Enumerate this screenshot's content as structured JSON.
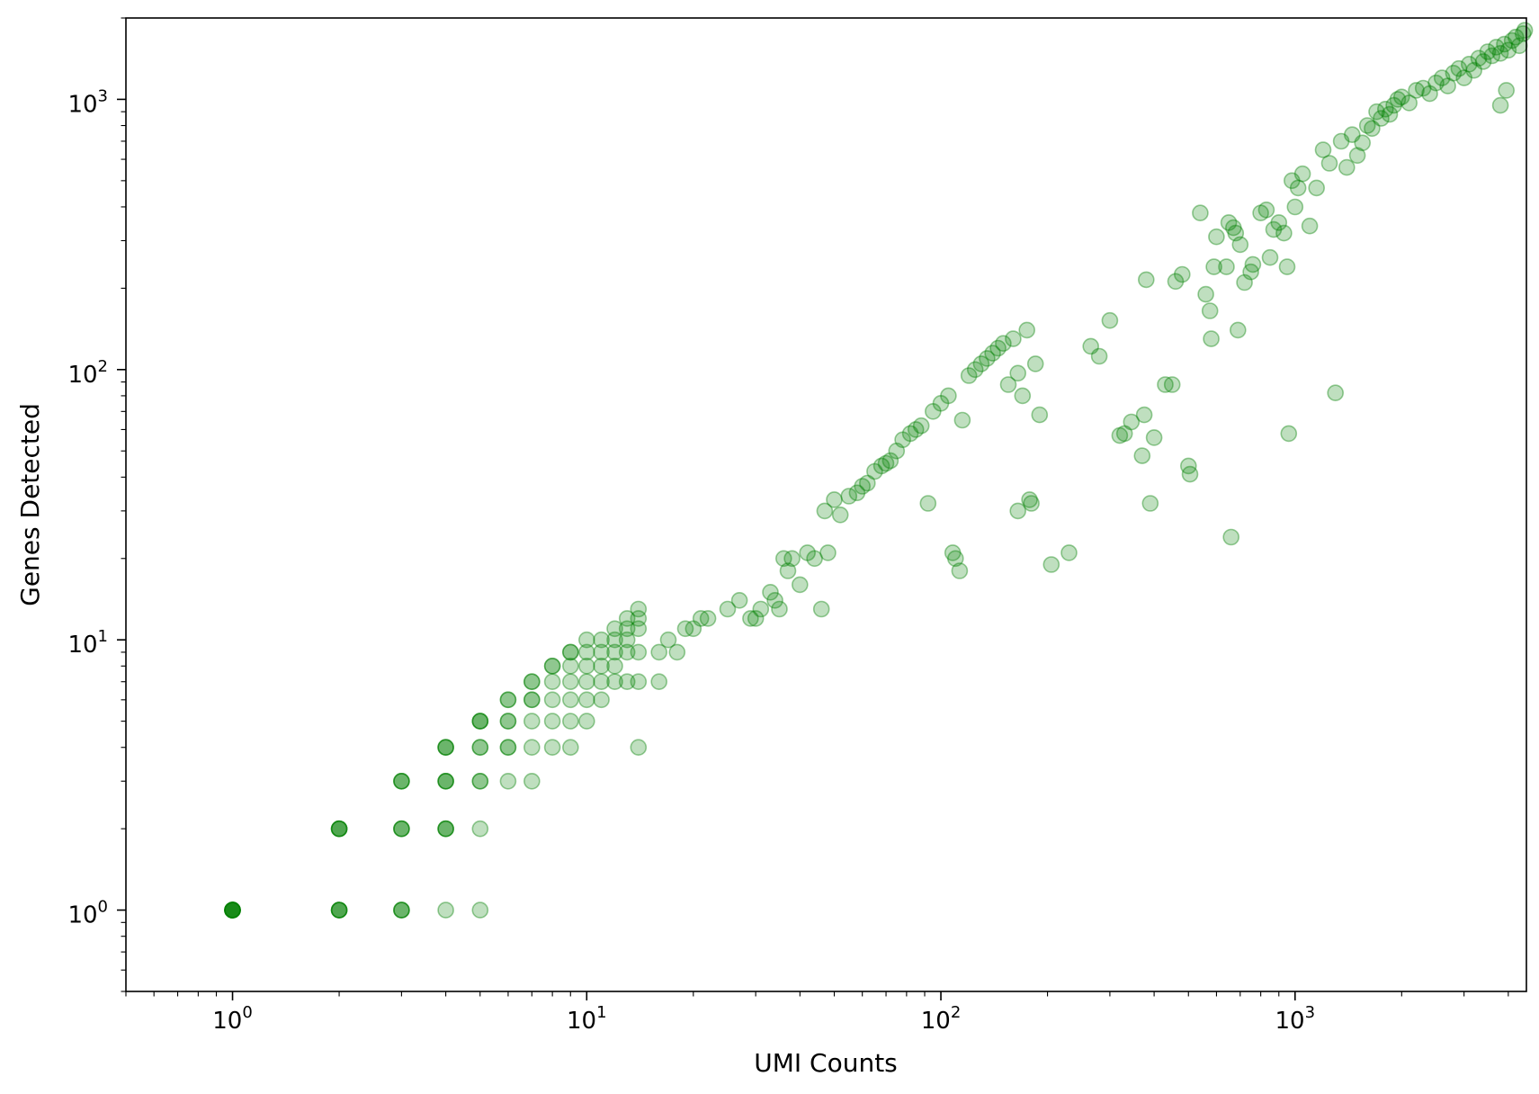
{
  "chart_data": {
    "type": "scatter",
    "title": "",
    "xlabel": "UMI Counts",
    "ylabel": "Genes Detected",
    "xscale": "log",
    "yscale": "log",
    "xlim": [
      0.5,
      4500
    ],
    "ylim": [
      0.5,
      2000
    ],
    "grid": false,
    "legend": "none",
    "marker": "circle",
    "color": "#008000",
    "alpha": 0.25,
    "x_ticks": [
      {
        "base": "10",
        "exp": "0",
        "value": 1
      },
      {
        "base": "10",
        "exp": "1",
        "value": 10
      },
      {
        "base": "10",
        "exp": "2",
        "value": 100
      },
      {
        "base": "10",
        "exp": "3",
        "value": 1000
      }
    ],
    "y_ticks": [
      {
        "base": "10",
        "exp": "0",
        "value": 1
      },
      {
        "base": "10",
        "exp": "1",
        "value": 10
      },
      {
        "base": "10",
        "exp": "2",
        "value": 100
      },
      {
        "base": "10",
        "exp": "3",
        "value": 1000
      }
    ],
    "points": [
      [
        1,
        1
      ],
      [
        1,
        1
      ],
      [
        1,
        1
      ],
      [
        1,
        1
      ],
      [
        1,
        1
      ],
      [
        1,
        1
      ],
      [
        1,
        1
      ],
      [
        1,
        1
      ],
      [
        2,
        1
      ],
      [
        2,
        1
      ],
      [
        2,
        1
      ],
      [
        2,
        1
      ],
      [
        2,
        2
      ],
      [
        2,
        2
      ],
      [
        2,
        2
      ],
      [
        2,
        2
      ],
      [
        3,
        1
      ],
      [
        3,
        1
      ],
      [
        3,
        1
      ],
      [
        3,
        2
      ],
      [
        3,
        2
      ],
      [
        3,
        2
      ],
      [
        3,
        3
      ],
      [
        3,
        3
      ],
      [
        3,
        3
      ],
      [
        4,
        1
      ],
      [
        4,
        2
      ],
      [
        4,
        2
      ],
      [
        4,
        2
      ],
      [
        4,
        3
      ],
      [
        4,
        3
      ],
      [
        4,
        3
      ],
      [
        4,
        4
      ],
      [
        4,
        4
      ],
      [
        4,
        4
      ],
      [
        5,
        1
      ],
      [
        5,
        2
      ],
      [
        5,
        3
      ],
      [
        5,
        3
      ],
      [
        5,
        4
      ],
      [
        5,
        4
      ],
      [
        5,
        5
      ],
      [
        5,
        5
      ],
      [
        5,
        5
      ],
      [
        6,
        3
      ],
      [
        6,
        4
      ],
      [
        6,
        4
      ],
      [
        6,
        5
      ],
      [
        6,
        5
      ],
      [
        6,
        6
      ],
      [
        6,
        6
      ],
      [
        7,
        3
      ],
      [
        7,
        4
      ],
      [
        7,
        5
      ],
      [
        7,
        6
      ],
      [
        7,
        6
      ],
      [
        7,
        7
      ],
      [
        7,
        7
      ],
      [
        8,
        4
      ],
      [
        8,
        5
      ],
      [
        8,
        6
      ],
      [
        8,
        7
      ],
      [
        8,
        8
      ],
      [
        8,
        8
      ],
      [
        9,
        4
      ],
      [
        9,
        5
      ],
      [
        9,
        6
      ],
      [
        9,
        7
      ],
      [
        9,
        8
      ],
      [
        9,
        9
      ],
      [
        9,
        9
      ],
      [
        10,
        5
      ],
      [
        10,
        6
      ],
      [
        10,
        7
      ],
      [
        10,
        8
      ],
      [
        10,
        9
      ],
      [
        10,
        10
      ],
      [
        11,
        6
      ],
      [
        11,
        7
      ],
      [
        11,
        8
      ],
      [
        11,
        9
      ],
      [
        11,
        10
      ],
      [
        12,
        7
      ],
      [
        12,
        8
      ],
      [
        12,
        9
      ],
      [
        12,
        10
      ],
      [
        12,
        11
      ],
      [
        13,
        7
      ],
      [
        13,
        9
      ],
      [
        13,
        10
      ],
      [
        13,
        11
      ],
      [
        13,
        12
      ],
      [
        14,
        4
      ],
      [
        14,
        7
      ],
      [
        14,
        9
      ],
      [
        14,
        11
      ],
      [
        14,
        12
      ],
      [
        14,
        13
      ],
      [
        16,
        7
      ],
      [
        16,
        9
      ],
      [
        17,
        10
      ],
      [
        18,
        9
      ],
      [
        19,
        11
      ],
      [
        20,
        11
      ],
      [
        21,
        12
      ],
      [
        22,
        12
      ],
      [
        25,
        13
      ],
      [
        27,
        14
      ],
      [
        29,
        12
      ],
      [
        30,
        12
      ],
      [
        31,
        13
      ],
      [
        33,
        15
      ],
      [
        34,
        14
      ],
      [
        35,
        13
      ],
      [
        36,
        20
      ],
      [
        37,
        18
      ],
      [
        38,
        20
      ],
      [
        40,
        16
      ],
      [
        42,
        21
      ],
      [
        44,
        20
      ],
      [
        46,
        13
      ],
      [
        47,
        30
      ],
      [
        48,
        21
      ],
      [
        50,
        33
      ],
      [
        52,
        29
      ],
      [
        55,
        34
      ],
      [
        58,
        35
      ],
      [
        60,
        37
      ],
      [
        62,
        38
      ],
      [
        65,
        42
      ],
      [
        68,
        44
      ],
      [
        70,
        45
      ],
      [
        72,
        46
      ],
      [
        75,
        50
      ],
      [
        78,
        55
      ],
      [
        82,
        58
      ],
      [
        85,
        60
      ],
      [
        88,
        62
      ],
      [
        92,
        32
      ],
      [
        95,
        70
      ],
      [
        100,
        75
      ],
      [
        105,
        80
      ],
      [
        108,
        21
      ],
      [
        110,
        20
      ],
      [
        113,
        18
      ],
      [
        115,
        65
      ],
      [
        120,
        95
      ],
      [
        125,
        100
      ],
      [
        130,
        105
      ],
      [
        135,
        110
      ],
      [
        140,
        115
      ],
      [
        145,
        120
      ],
      [
        150,
        125
      ],
      [
        155,
        88
      ],
      [
        160,
        130
      ],
      [
        165,
        97
      ],
      [
        170,
        80
      ],
      [
        175,
        140
      ],
      [
        178,
        33
      ],
      [
        180,
        32
      ],
      [
        185,
        105
      ],
      [
        190,
        68
      ],
      [
        165,
        30
      ],
      [
        205,
        19
      ],
      [
        230,
        21
      ],
      [
        265,
        122
      ],
      [
        280,
        112
      ],
      [
        300,
        152
      ],
      [
        320,
        57
      ],
      [
        330,
        58
      ],
      [
        345,
        64
      ],
      [
        370,
        48
      ],
      [
        375,
        68
      ],
      [
        380,
        215
      ],
      [
        390,
        32
      ],
      [
        400,
        56
      ],
      [
        430,
        88
      ],
      [
        450,
        88
      ],
      [
        460,
        212
      ],
      [
        480,
        225
      ],
      [
        500,
        44
      ],
      [
        505,
        41
      ],
      [
        540,
        380
      ],
      [
        560,
        190
      ],
      [
        575,
        165
      ],
      [
        580,
        130
      ],
      [
        590,
        240
      ],
      [
        600,
        310
      ],
      [
        640,
        240
      ],
      [
        650,
        350
      ],
      [
        670,
        335
      ],
      [
        680,
        320
      ],
      [
        690,
        140
      ],
      [
        660,
        24
      ],
      [
        700,
        290
      ],
      [
        720,
        210
      ],
      [
        750,
        230
      ],
      [
        760,
        245
      ],
      [
        800,
        380
      ],
      [
        830,
        390
      ],
      [
        850,
        260
      ],
      [
        870,
        330
      ],
      [
        900,
        350
      ],
      [
        930,
        320
      ],
      [
        950,
        240
      ],
      [
        960,
        58
      ],
      [
        980,
        500
      ],
      [
        1000,
        400
      ],
      [
        1020,
        470
      ],
      [
        1050,
        530
      ],
      [
        1100,
        340
      ],
      [
        1150,
        470
      ],
      [
        1200,
        650
      ],
      [
        1250,
        580
      ],
      [
        1300,
        82
      ],
      [
        1350,
        700
      ],
      [
        1400,
        560
      ],
      [
        1450,
        740
      ],
      [
        1500,
        620
      ],
      [
        1550,
        690
      ],
      [
        1600,
        800
      ],
      [
        1650,
        780
      ],
      [
        1700,
        900
      ],
      [
        1750,
        850
      ],
      [
        1800,
        920
      ],
      [
        1850,
        880
      ],
      [
        1900,
        950
      ],
      [
        1950,
        1000
      ],
      [
        2000,
        1020
      ],
      [
        2100,
        970
      ],
      [
        2200,
        1080
      ],
      [
        2300,
        1100
      ],
      [
        2400,
        1050
      ],
      [
        2500,
        1150
      ],
      [
        2600,
        1200
      ],
      [
        2700,
        1120
      ],
      [
        2800,
        1250
      ],
      [
        2900,
        1300
      ],
      [
        3000,
        1200
      ],
      [
        3100,
        1350
      ],
      [
        3200,
        1280
      ],
      [
        3300,
        1420
      ],
      [
        3400,
        1380
      ],
      [
        3500,
        1500
      ],
      [
        3600,
        1450
      ],
      [
        3700,
        1560
      ],
      [
        3800,
        1480
      ],
      [
        3900,
        1600
      ],
      [
        4000,
        1520
      ],
      [
        4100,
        1650
      ],
      [
        4200,
        1700
      ],
      [
        4300,
        1580
      ],
      [
        4400,
        1750
      ],
      [
        4450,
        1800
      ],
      [
        3800,
        950
      ],
      [
        3950,
        1080
      ]
    ]
  }
}
